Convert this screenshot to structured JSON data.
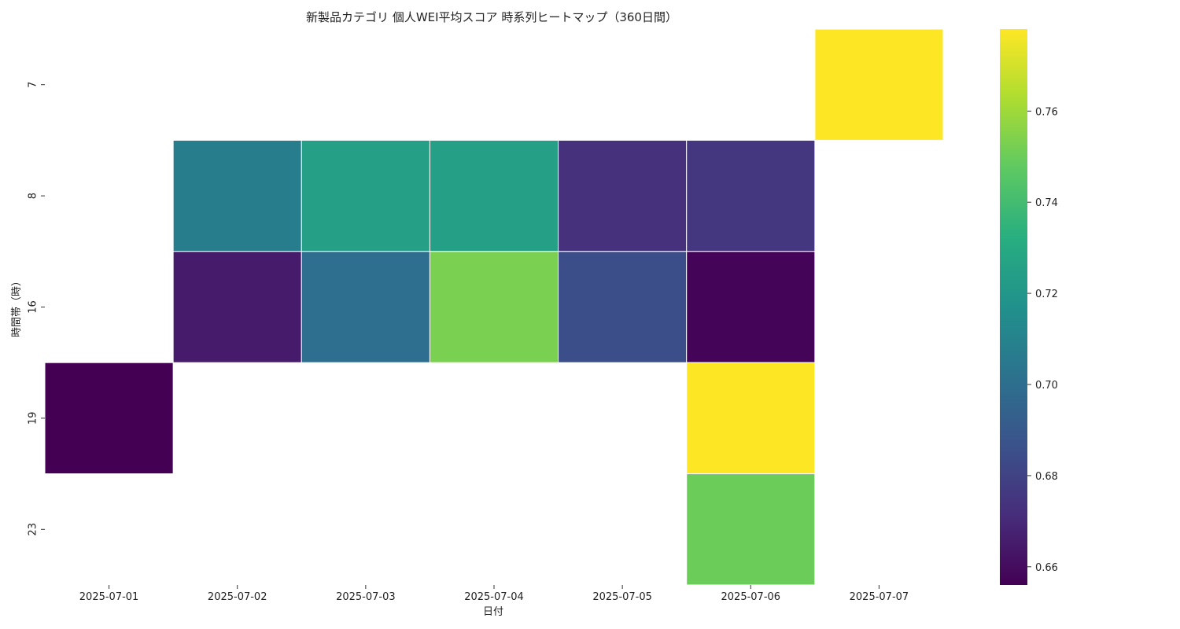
{
  "chart_data": {
    "type": "heatmap",
    "title": "新製品カテゴリ 個人WEI平均スコア 時系列ヒートマップ（360日間）",
    "xlabel": "日付",
    "ylabel": "時間帯（時）",
    "x_categories": [
      "2025-07-01",
      "2025-07-02",
      "2025-07-03",
      "2025-07-04",
      "2025-07-05",
      "2025-07-06",
      "2025-07-07"
    ],
    "y_categories": [
      "7",
      "8",
      "16",
      "19",
      "23"
    ],
    "values": [
      [
        null,
        null,
        null,
        null,
        null,
        null,
        0.778
      ],
      [
        null,
        0.707,
        0.725,
        0.725,
        0.673,
        0.675,
        null
      ],
      [
        null,
        0.665,
        0.7,
        0.753,
        0.685,
        0.657,
        null
      ],
      [
        0.656,
        null,
        null,
        null,
        null,
        0.778,
        null
      ],
      [
        null,
        null,
        null,
        null,
        null,
        0.75,
        null
      ]
    ],
    "colormap": "viridis",
    "color_range": [
      0.656,
      0.778
    ],
    "colorbar_ticks": [
      0.66,
      0.68,
      0.7,
      0.72,
      0.74,
      0.76
    ],
    "grid": false,
    "cell_border_color": "#ffffff"
  }
}
